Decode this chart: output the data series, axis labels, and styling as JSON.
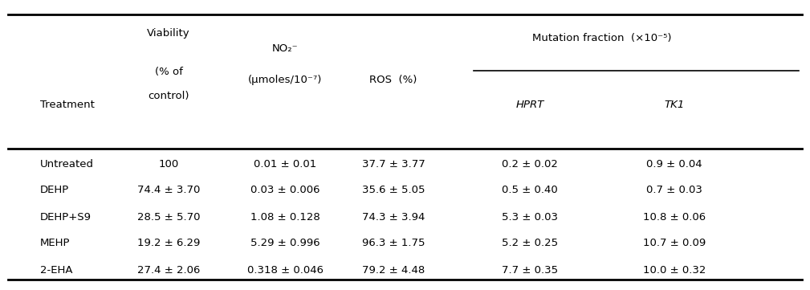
{
  "treatments": [
    "Untreated",
    "DEHP",
    "DEHP+S9",
    "MEHP",
    "2-EHA"
  ],
  "viability": [
    "100",
    "74.4 ± 3.70",
    "28.5 ± 5.70",
    "19.2 ± 6.29",
    "27.4 ± 2.06"
  ],
  "no2": [
    "0.01 ± 0.01",
    "0.03 ± 0.006",
    "1.08 ± 0.128",
    "5.29 ± 0.996",
    "0.318 ± 0.046"
  ],
  "ros": [
    "37.7 ± 3.77",
    "35.6 ± 5.05",
    "74.3 ± 3.94",
    "96.3 ± 1.75",
    "79.2 ± 4.48"
  ],
  "hprt": [
    "0.2 ± 0.02",
    "0.5 ± 0.40",
    "5.3 ± 0.03",
    "5.2 ± 0.25",
    "7.7 ± 0.35"
  ],
  "tk1": [
    "0.9 ± 0.04",
    "0.7 ± 0.03",
    "10.8 ± 0.06",
    "10.7 ± 0.09",
    "10.0 ± 0.32"
  ],
  "col_header_treatment": "Treatment",
  "col_header_viability_line1": "Viability",
  "col_header_viability_line2": "(% of",
  "col_header_viability_line3": "control)",
  "col_header_no2_line1": "NO₂⁻",
  "col_header_no2_line2": "(μmoles/10⁻⁷)",
  "col_header_ros": "ROS  (%)",
  "col_header_mutation": "Mutation fraction  (×10⁻⁵)",
  "col_header_hprt": "HPRT",
  "col_header_tk1": "TK1",
  "bg_color": "#ffffff",
  "text_color": "#000000",
  "line_color": "#000000",
  "font_size": 9.5
}
